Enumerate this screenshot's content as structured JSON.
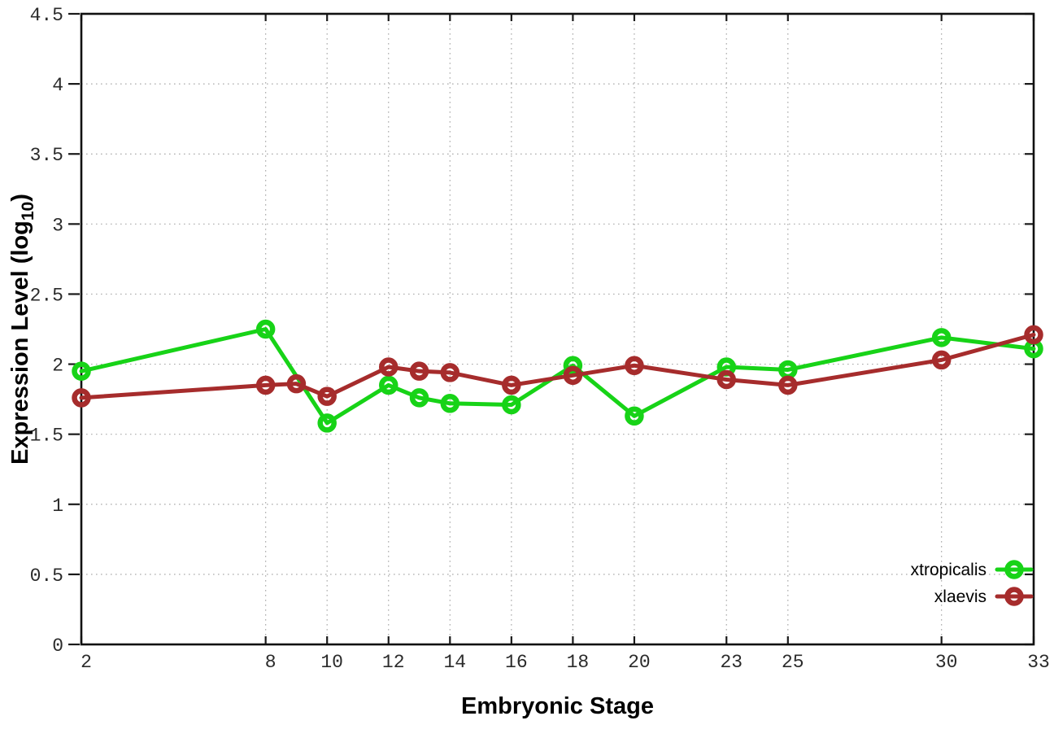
{
  "chart_data": {
    "type": "line",
    "title": "",
    "xlabel": "Embryonic Stage",
    "ylabel": "Expression Level (log10)",
    "xlim": [
      2,
      33
    ],
    "ylim": [
      0,
      4.5
    ],
    "x_ticks": [
      2,
      8,
      10,
      12,
      14,
      16,
      18,
      20,
      23,
      25,
      30,
      33
    ],
    "y_ticks": [
      0,
      0.5,
      1,
      1.5,
      2,
      2.5,
      3,
      3.5,
      4,
      4.5
    ],
    "grid": true,
    "grid_style": "dotted",
    "legend_position": "bottom-right",
    "series": [
      {
        "name": "xtropicalis",
        "color": "#17d317",
        "x": [
          2,
          8,
          10,
          12,
          13,
          14,
          16,
          18,
          20,
          23,
          25,
          30,
          33
        ],
        "y": [
          1.95,
          2.25,
          1.58,
          1.85,
          1.76,
          1.72,
          1.71,
          1.99,
          1.63,
          1.98,
          1.96,
          2.19,
          2.11
        ]
      },
      {
        "name": "xlaevis",
        "color": "#a62c2c",
        "x": [
          2,
          8,
          9,
          10,
          12,
          13,
          14,
          16,
          18,
          20,
          23,
          25,
          30,
          33
        ],
        "y": [
          1.76,
          1.85,
          1.86,
          1.77,
          1.98,
          1.95,
          1.94,
          1.85,
          1.92,
          1.99,
          1.89,
          1.85,
          2.03,
          2.21
        ]
      }
    ]
  },
  "colors": {
    "frame": "#111111",
    "grid": "#aaaaaa",
    "tick": "#1a1a1a",
    "text": "#000000",
    "background": "#ffffff"
  }
}
